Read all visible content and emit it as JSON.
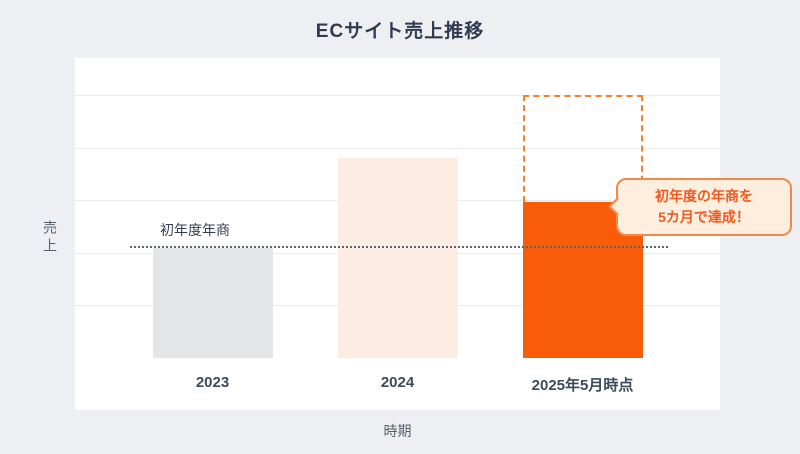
{
  "chart_data": {
    "type": "bar",
    "title": "ECサイト売上推移",
    "xlabel": "時期",
    "ylabel": "売上",
    "categories": [
      "2023",
      "2024",
      "2025年5月時点"
    ],
    "values": [
      100,
      182,
      142
    ],
    "value_basis": "relative scale; reference line 初年度年商 = 100 (no numeric axis shown)",
    "ylim": [
      0,
      273
    ],
    "grid": true,
    "legend": false,
    "bar_colors": [
      "#e4e5e6",
      "#fdece2",
      "#f85c09"
    ],
    "projection": {
      "category_index": 2,
      "value": 239,
      "style": "dashed-outline",
      "color": "#f5812e"
    },
    "reference_line": {
      "label": "初年度年商",
      "value": 100,
      "style": "dotted",
      "color": "#5a626e"
    },
    "annotation": {
      "lines": [
        "初年度の年商を",
        "5カ月で達成！"
      ],
      "text_color": "#f05a22",
      "bg": "#fdeede",
      "border": "#f08a4c",
      "arrow": "left"
    }
  },
  "colors": {
    "background": "#edeff2",
    "panel": "#ffffff",
    "gridline": "#e9ecef",
    "title": "#2f3c50",
    "tick": "#3e4a5a",
    "axis_label": "#55606e"
  }
}
